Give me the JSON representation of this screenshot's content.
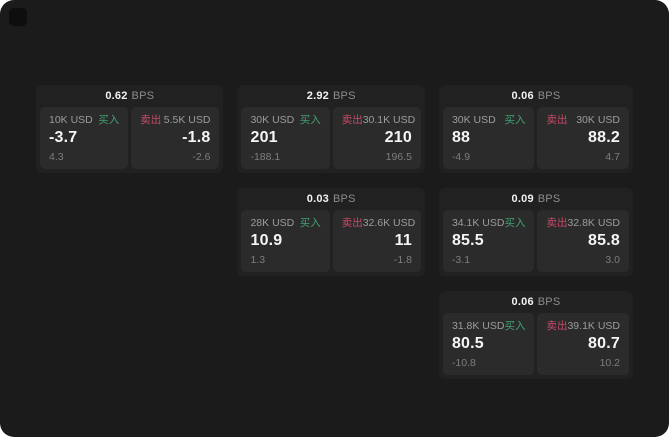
{
  "theme": {
    "surface": "#1b1b1c",
    "card": "#212122",
    "pane": "#2b2b2c",
    "buy_green": "#41a171",
    "sell_red": "#c74a66",
    "text_primary": "#f5f5f5",
    "text_secondary": "#9c9c9c",
    "text_dim": "#7d7d7d"
  },
  "labels": {
    "bps": "BPS",
    "buy": "买入",
    "sell": "卖出"
  },
  "cards": [
    {
      "bps": "0.62",
      "buy": {
        "size": "10K USD",
        "price": "-3.7",
        "delta": "4.3"
      },
      "sell": {
        "size": "5.5K USD",
        "price": "-1.8",
        "delta": "-2.6"
      }
    },
    {
      "bps": "2.92",
      "buy": {
        "size": "30K USD",
        "price": "201",
        "delta": "-188.1"
      },
      "sell": {
        "size": "30.1K USD",
        "price": "210",
        "delta": "196.5"
      }
    },
    {
      "bps": "0.06",
      "buy": {
        "size": "30K USD",
        "price": "88",
        "delta": "-4.9"
      },
      "sell": {
        "size": "30K USD",
        "price": "88.2",
        "delta": "4.7"
      }
    },
    {
      "bps": "0.03",
      "buy": {
        "size": "28K USD",
        "price": "10.9",
        "delta": "1.3"
      },
      "sell": {
        "size": "32.6K USD",
        "price": "11",
        "delta": "-1.8"
      }
    },
    {
      "bps": "0.09",
      "buy": {
        "size": "34.1K USD",
        "price": "85.5",
        "delta": "-3.1"
      },
      "sell": {
        "size": "32.8K USD",
        "price": "85.8",
        "delta": "3.0"
      }
    },
    {
      "bps": "0.06",
      "buy": {
        "size": "31.8K USD",
        "price": "80.5",
        "delta": "-10.8"
      },
      "sell": {
        "size": "39.1K USD",
        "price": "80.7",
        "delta": "10.2"
      }
    }
  ]
}
